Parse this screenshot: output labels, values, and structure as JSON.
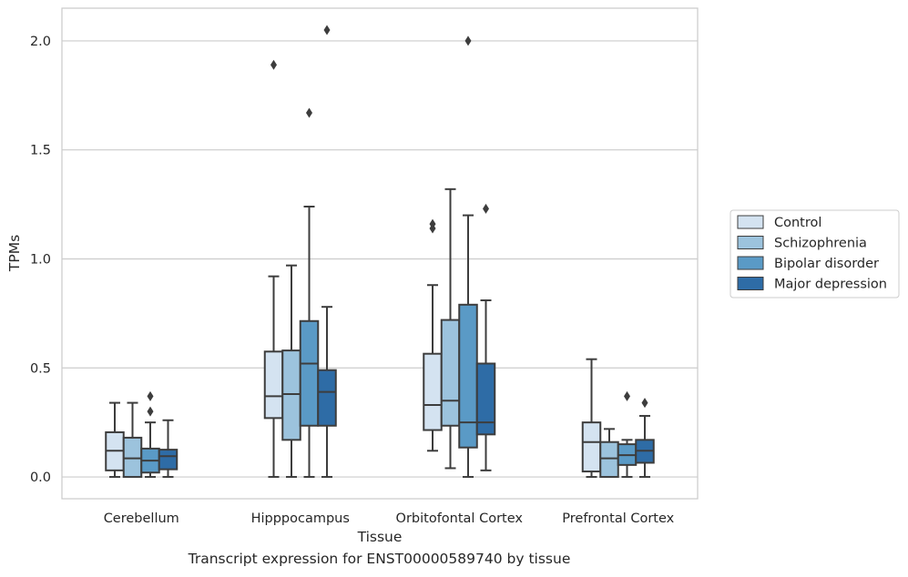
{
  "chart_data": {
    "type": "boxplot",
    "caption": "Transcript expression for ENST00000589740 by tissue",
    "xlabel": "Tissue",
    "ylabel": "TPMs",
    "ylim": [
      -0.1,
      2.15
    ],
    "yticks": [
      "0.0",
      "0.5",
      "1.0",
      "1.5",
      "2.0"
    ],
    "grid": true,
    "legend_position": "right",
    "categories": [
      "Cerebellum",
      "Hipppocampus",
      "Orbitofontal Cortex",
      "Prefrontal Cortex"
    ],
    "series": [
      {
        "name": "Control",
        "color": "#d4e3f1",
        "boxes": [
          {
            "whislo": 0.0,
            "q1": 0.03,
            "med": 0.12,
            "q3": 0.205,
            "whishi": 0.34,
            "fliers": []
          },
          {
            "whislo": 0.0,
            "q1": 0.27,
            "med": 0.37,
            "q3": 0.575,
            "whishi": 0.92,
            "fliers": [
              1.89
            ]
          },
          {
            "whislo": 0.12,
            "q1": 0.215,
            "med": 0.33,
            "q3": 0.565,
            "whishi": 0.88,
            "fliers": [
              1.14,
              1.16
            ]
          },
          {
            "whislo": 0.0,
            "q1": 0.025,
            "med": 0.16,
            "q3": 0.25,
            "whishi": 0.54,
            "fliers": []
          }
        ]
      },
      {
        "name": "Schizophrenia",
        "color": "#9cc3dd",
        "boxes": [
          {
            "whislo": 0.0,
            "q1": 0.0,
            "med": 0.085,
            "q3": 0.18,
            "whishi": 0.34,
            "fliers": []
          },
          {
            "whislo": 0.0,
            "q1": 0.17,
            "med": 0.38,
            "q3": 0.58,
            "whishi": 0.97,
            "fliers": []
          },
          {
            "whislo": 0.04,
            "q1": 0.235,
            "med": 0.35,
            "q3": 0.72,
            "whishi": 1.32,
            "fliers": []
          },
          {
            "whislo": 0.0,
            "q1": 0.0,
            "med": 0.085,
            "q3": 0.16,
            "whishi": 0.22,
            "fliers": []
          }
        ]
      },
      {
        "name": "Bipolar disorder",
        "color": "#5a9ac6",
        "boxes": [
          {
            "whislo": 0.0,
            "q1": 0.02,
            "med": 0.075,
            "q3": 0.13,
            "whishi": 0.25,
            "fliers": [
              0.3,
              0.37
            ]
          },
          {
            "whislo": 0.0,
            "q1": 0.235,
            "med": 0.52,
            "q3": 0.715,
            "whishi": 1.24,
            "fliers": [
              1.67
            ]
          },
          {
            "whislo": 0.0,
            "q1": 0.135,
            "med": 0.25,
            "q3": 0.79,
            "whishi": 1.2,
            "fliers": [
              2.0
            ]
          },
          {
            "whislo": 0.0,
            "q1": 0.055,
            "med": 0.1,
            "q3": 0.15,
            "whishi": 0.17,
            "fliers": [
              0.37
            ]
          }
        ]
      },
      {
        "name": "Major depression",
        "color": "#2e6ca6",
        "boxes": [
          {
            "whislo": 0.0,
            "q1": 0.035,
            "med": 0.095,
            "q3": 0.125,
            "whishi": 0.26,
            "fliers": []
          },
          {
            "whislo": 0.0,
            "q1": 0.235,
            "med": 0.39,
            "q3": 0.49,
            "whishi": 0.78,
            "fliers": [
              2.05
            ]
          },
          {
            "whislo": 0.03,
            "q1": 0.195,
            "med": 0.25,
            "q3": 0.52,
            "whishi": 0.81,
            "fliers": [
              1.23
            ]
          },
          {
            "whislo": 0.0,
            "q1": 0.065,
            "med": 0.12,
            "q3": 0.17,
            "whishi": 0.28,
            "fliers": [
              0.34
            ]
          }
        ]
      }
    ]
  }
}
